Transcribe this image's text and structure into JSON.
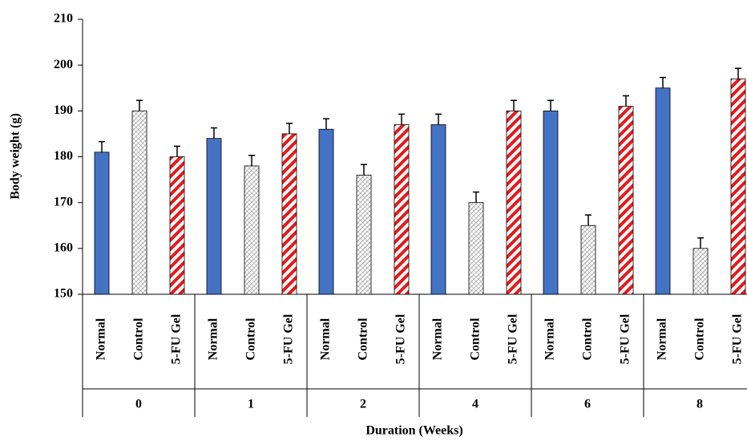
{
  "chart_data": {
    "type": "bar",
    "x_label": "Duration (Weeks)",
    "y_label": "Body weight (g)",
    "categories": [
      "0",
      "1",
      "2",
      "4",
      "6",
      "8"
    ],
    "series": [
      {
        "name": "Normal",
        "color": "#4472c4",
        "values": [
          181,
          184,
          186,
          187,
          190,
          195
        ],
        "errors": [
          2.3,
          2.3,
          2.3,
          2.3,
          2.3,
          2.3
        ]
      },
      {
        "name": "Control",
        "color": "#7f7f7f",
        "values": [
          190,
          178,
          176,
          170,
          165,
          160
        ],
        "errors": [
          2.3,
          2.3,
          2.3,
          2.3,
          2.3,
          2.3
        ]
      },
      {
        "name": "5-FU Gel",
        "color": "#e31a1c",
        "values": [
          180,
          185,
          187,
          190,
          191,
          197
        ],
        "errors": [
          2.3,
          2.3,
          2.3,
          2.3,
          2.3,
          2.3
        ]
      }
    ],
    "ylim": [
      150,
      210
    ],
    "yticks": [
      150,
      160,
      170,
      180,
      190,
      200,
      210
    ],
    "grid": false
  }
}
